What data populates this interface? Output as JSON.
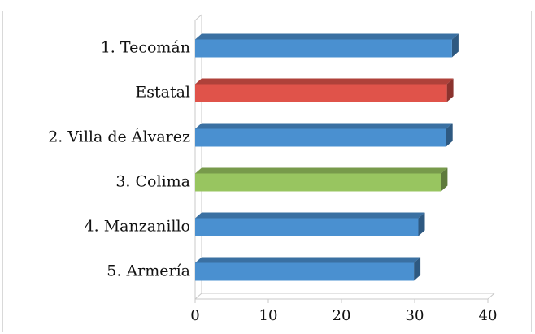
{
  "chart_data": {
    "type": "bar",
    "orientation": "horizontal",
    "style": "3d",
    "categories": [
      "1. Tecomán",
      "Estatal",
      "2. Villa de Álvarez",
      "3. Colima",
      "4. Manzanillo",
      "5. Armería"
    ],
    "values": [
      35.1,
      34.4,
      34.3,
      33.6,
      30.5,
      29.9
    ],
    "colors": [
      "#4a90d0",
      "#e0534a",
      "#4a90d0",
      "#98c560",
      "#4a90d0",
      "#4a90d0"
    ],
    "xlim": [
      0,
      40
    ],
    "xticks": [
      0,
      10,
      20,
      30,
      40
    ],
    "title": "",
    "xlabel": "",
    "ylabel": "",
    "grid": false,
    "legend": "none"
  }
}
